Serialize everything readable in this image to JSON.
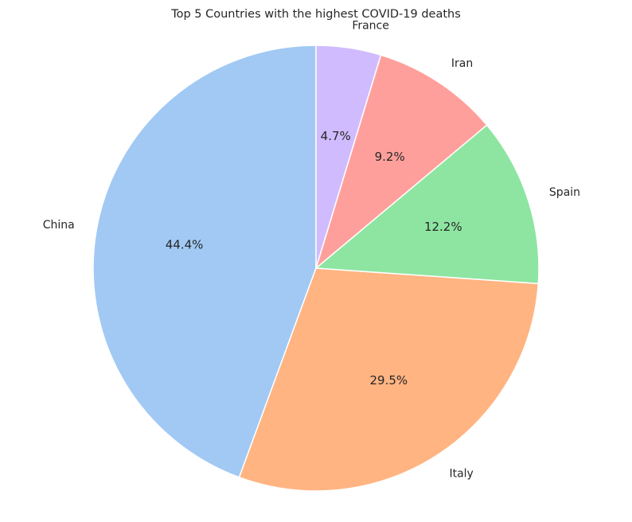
{
  "chart_data": {
    "type": "pie",
    "title": "Top 5 Countries with the highest COVID-19 deaths",
    "start_angle_deg": 90,
    "direction": "counterclockwise",
    "slices": [
      {
        "label": "China",
        "value": 44.4,
        "pct_label": "44.4%",
        "color": "#a1c9f4"
      },
      {
        "label": "Italy",
        "value": 29.5,
        "pct_label": "29.5%",
        "color": "#ffb482"
      },
      {
        "label": "Spain",
        "value": 12.2,
        "pct_label": "12.2%",
        "color": "#8de5a1"
      },
      {
        "label": "Iran",
        "value": 9.2,
        "pct_label": "9.2%",
        "color": "#ff9f9b"
      },
      {
        "label": "France",
        "value": 4.7,
        "pct_label": "4.7%",
        "color": "#d0bbff"
      }
    ]
  }
}
